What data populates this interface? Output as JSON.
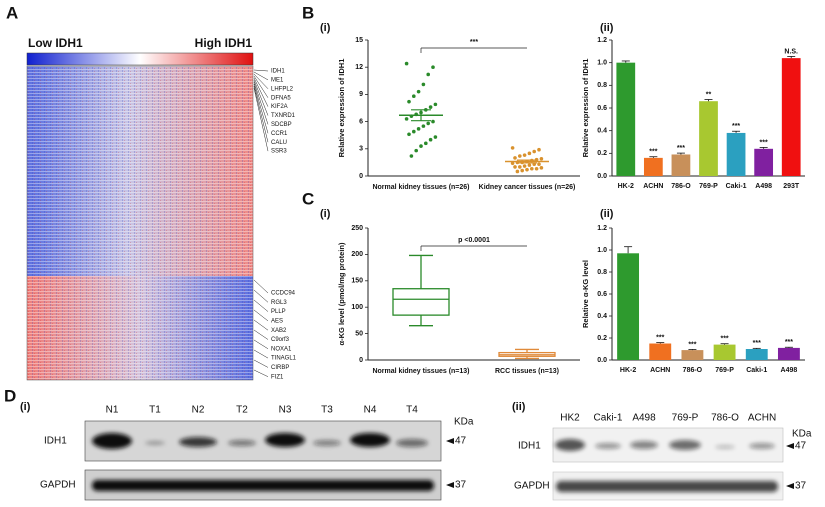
{
  "figure_labels": [
    "A",
    "B",
    "C",
    "D"
  ],
  "heatmap": {
    "low_label": "Low IDH1",
    "high_label": "High IDH1",
    "top_genes": [
      "IDH1",
      "ME1",
      "LHFPL2",
      "DFNA5",
      "KIF2A",
      "TXNRD1",
      "SDCBP",
      "CCR1",
      "CALU",
      "SSR3"
    ],
    "bottom_genes": [
      "CCDC94",
      "RGL3",
      "PLLP",
      "AES",
      "XAB2",
      "C9orf3",
      "NOXA1",
      "TINAGL1",
      "CIRBP",
      "FIZ1"
    ]
  },
  "chart_data": [
    {
      "type": "strip",
      "panel": "(i)",
      "ylabel": "Relative expression of IDH1",
      "categories": [
        "Normal kidney tissues (n=26)",
        "Kidney cancer tissues (n=26)"
      ],
      "groups": [
        {
          "color": "#2a8a2a",
          "mean": 6.7,
          "sem": 0.6,
          "values": [
            12.4,
            12.0,
            11.2,
            10.1,
            9.3,
            8.8,
            8.2,
            7.9,
            7.6,
            7.3,
            7.0,
            6.8,
            6.6,
            6.3,
            6.0,
            5.8,
            5.5,
            5.2,
            4.9,
            4.6,
            4.3,
            4.0,
            3.6,
            3.3,
            2.8,
            2.2
          ]
        },
        {
          "color": "#d9922e",
          "mean": 1.6,
          "sem": 0.15,
          "values": [
            3.1,
            2.9,
            2.7,
            2.5,
            2.3,
            2.2,
            2.0,
            1.9,
            1.8,
            1.7,
            1.6,
            1.5,
            1.5,
            1.4,
            1.3,
            1.3,
            1.2,
            1.1,
            1.0,
            1.0,
            0.9,
            0.8,
            0.8,
            0.7,
            0.6,
            0.5
          ]
        }
      ],
      "comparison": "***",
      "ylim": [
        0,
        15
      ],
      "yticks": [
        0,
        3,
        6,
        9,
        12,
        15
      ]
    },
    {
      "type": "bar",
      "panel": "(ii)",
      "ylabel": "Relative expression of IDH1",
      "categories": [
        "HK-2",
        "ACHN",
        "786-O",
        "769-P",
        "Caki-1",
        "A498",
        "293T"
      ],
      "values": [
        1.0,
        0.16,
        0.19,
        0.66,
        0.38,
        0.24,
        1.04
      ],
      "errors": [
        0.015,
        0.01,
        0.012,
        0.015,
        0.015,
        0.012,
        0.015
      ],
      "colors": [
        "#2e9a2e",
        "#f07020",
        "#c8905a",
        "#a8c830",
        "#2ba0c0",
        "#8020a0",
        "#f01010"
      ],
      "annotations": [
        "",
        "***",
        "***",
        "**",
        "***",
        "***",
        "N.S."
      ],
      "ylim": [
        0,
        1.2
      ],
      "yticks": [
        {
          "value": 0,
          "label": "0.0"
        },
        0.2,
        0.4,
        0.6,
        0.8,
        {
          "value": 1,
          "label": "1.0"
        },
        1.2
      ]
    },
    {
      "type": "box",
      "panel": "(i)",
      "ylabel": "α-KG level (pmol/mg protein)",
      "categories": [
        "Normal kidney tissues (n=13)",
        "RCC tissues (n=13)"
      ],
      "boxes": [
        {
          "min": 65,
          "q1": 85,
          "median": 115,
          "q3": 135,
          "max": 198
        },
        {
          "min": 3,
          "q1": 7,
          "median": 10,
          "q3": 14,
          "max": 20
        }
      ],
      "colors": [
        "#2a8a2a",
        "#e08a3a"
      ],
      "comparison": "p <0.0001",
      "ylim": [
        0,
        250
      ],
      "yticks": [
        0,
        50,
        100,
        150,
        200,
        250
      ]
    },
    {
      "type": "bar",
      "panel": "(ii)",
      "ylabel": "Relative α-KG level",
      "categories": [
        "HK-2",
        "ACHN",
        "786-O",
        "769-P",
        "Caki-1",
        "A498"
      ],
      "values": [
        0.97,
        0.15,
        0.09,
        0.14,
        0.1,
        0.11
      ],
      "errors": [
        0.06,
        0.008,
        0.006,
        0.008,
        0.006,
        0.006
      ],
      "colors": [
        "#2e9a2e",
        "#f07020",
        "#c8905a",
        "#a8c830",
        "#2ba0c0",
        "#8020a0"
      ],
      "annotations": [
        "",
        "***",
        "***",
        "***",
        "***",
        "***"
      ],
      "ylim": [
        0,
        1.2
      ],
      "yticks": [
        {
          "value": 0,
          "label": "0.0"
        },
        0.2,
        0.4,
        0.6,
        0.8,
        {
          "value": 1,
          "label": "1.0"
        },
        1.2
      ]
    }
  ],
  "blots": [
    {
      "panel": "(i)",
      "unit": "KDa",
      "lanes": [
        "N1",
        "T1",
        "N2",
        "T2",
        "N3",
        "T3",
        "N4",
        "T4"
      ],
      "rows": [
        {
          "name": "IDH1",
          "marker": "47"
        },
        {
          "name": "GAPDH",
          "marker": "37"
        }
      ]
    },
    {
      "panel": "(ii)",
      "unit": "KDa",
      "lanes": [
        "HK2",
        "Caki-1",
        "A498",
        "769-P",
        "786-O",
        "ACHN"
      ],
      "rows": [
        {
          "name": "IDH1",
          "marker": "47"
        },
        {
          "name": "GAPDH",
          "marker": "37"
        }
      ]
    }
  ]
}
